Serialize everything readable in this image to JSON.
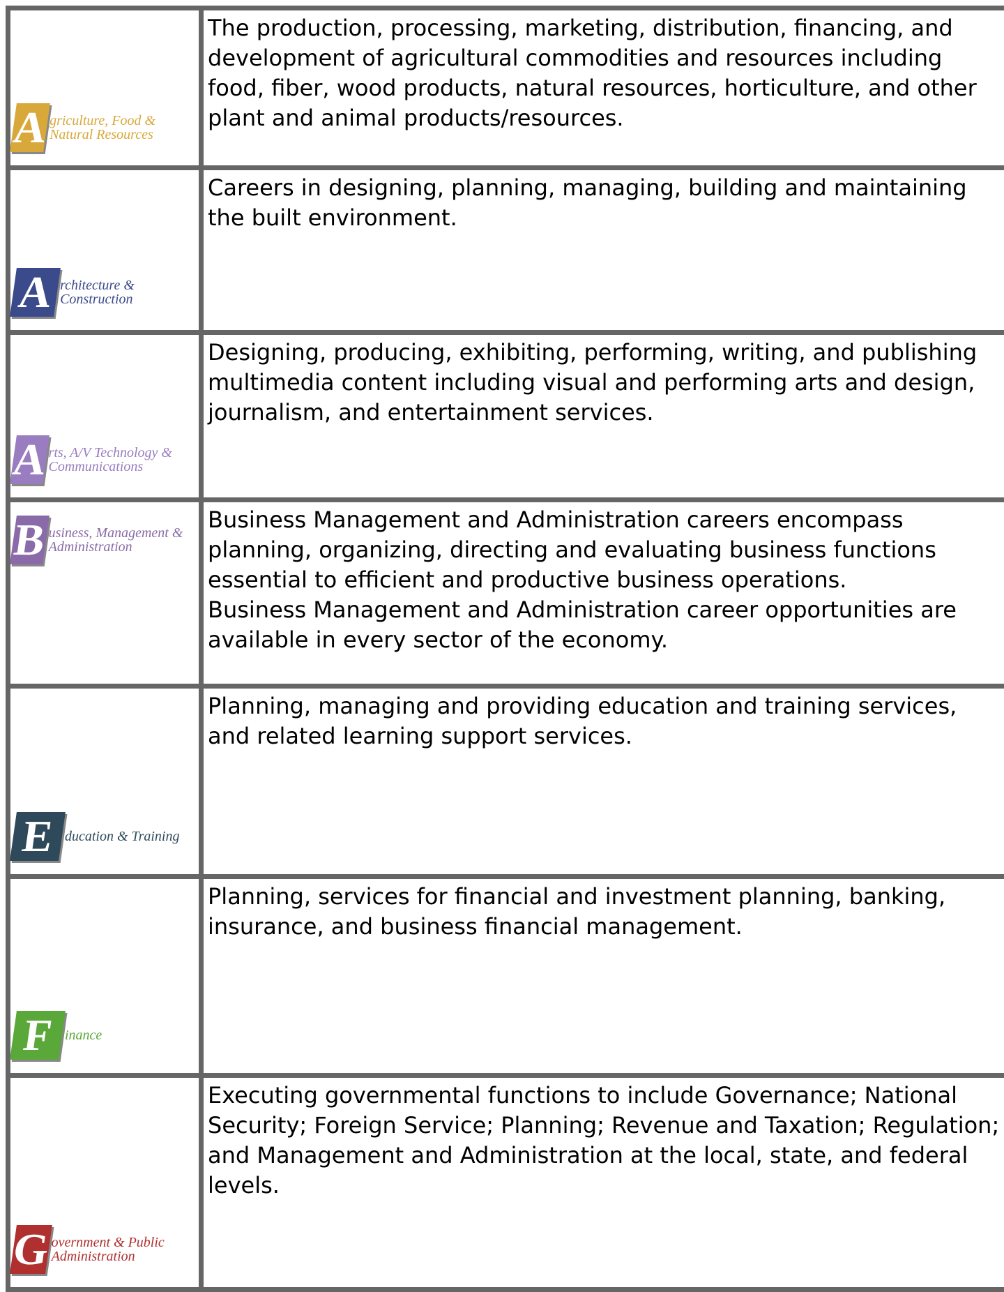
{
  "table": {
    "rows": [
      {
        "logo": {
          "letter": "A",
          "caption": "griculture, Food & Natural Resources",
          "color": "#d8a83a"
        },
        "paragraphs": [
          "The production, processing, marketing, distribution, financing, and development of agricultural commodities and resources including food, fiber, wood products, natural resources, horticulture, and other plant and animal products/resources."
        ]
      },
      {
        "logo": {
          "letter": "A",
          "caption": "rchitecture & Construction",
          "color": "#3a4a8a"
        },
        "paragraphs": [
          "Careers in designing, planning, managing, building and maintaining the built environment."
        ]
      },
      {
        "logo": {
          "letter": "A",
          "caption": "rts, A/V Technology & Communications",
          "color": "#9a7cc0"
        },
        "paragraphs": [
          "Designing, producing, exhibiting, performing, writing, and publishing multimedia content including visual and performing arts and design, journalism, and entertainment services."
        ]
      },
      {
        "logo": {
          "letter": "B",
          "caption": "usiness, Management & Administration",
          "color": "#8a6aa8"
        },
        "paragraphs": [
          "Business Management and Administration careers encompass planning, organizing, directing and evaluating business functions essential to efficient and productive business operations.",
          "Business Management and Administration career opportunities are available in every sector of the economy."
        ]
      },
      {
        "logo": {
          "letter": "E",
          "caption": "ducation & Training",
          "color": "#2e4a5a"
        },
        "paragraphs": [
          "Planning, managing and providing education and training services, and related learning support services."
        ]
      },
      {
        "logo": {
          "letter": "F",
          "caption": "inance",
          "color": "#5aa83a"
        },
        "paragraphs": [
          "Planning, services for financial and investment planning, banking, insurance, and business financial management."
        ]
      },
      {
        "logo": {
          "letter": "G",
          "caption": "overnment & Public Administration",
          "color": "#b03030"
        },
        "paragraphs": [
          "Executing governmental functions to include Governance; National Security; Foreign Service; Planning; Revenue and Taxation; Regulation; and Management and Administration at the local, state, and federal levels."
        ]
      }
    ]
  }
}
